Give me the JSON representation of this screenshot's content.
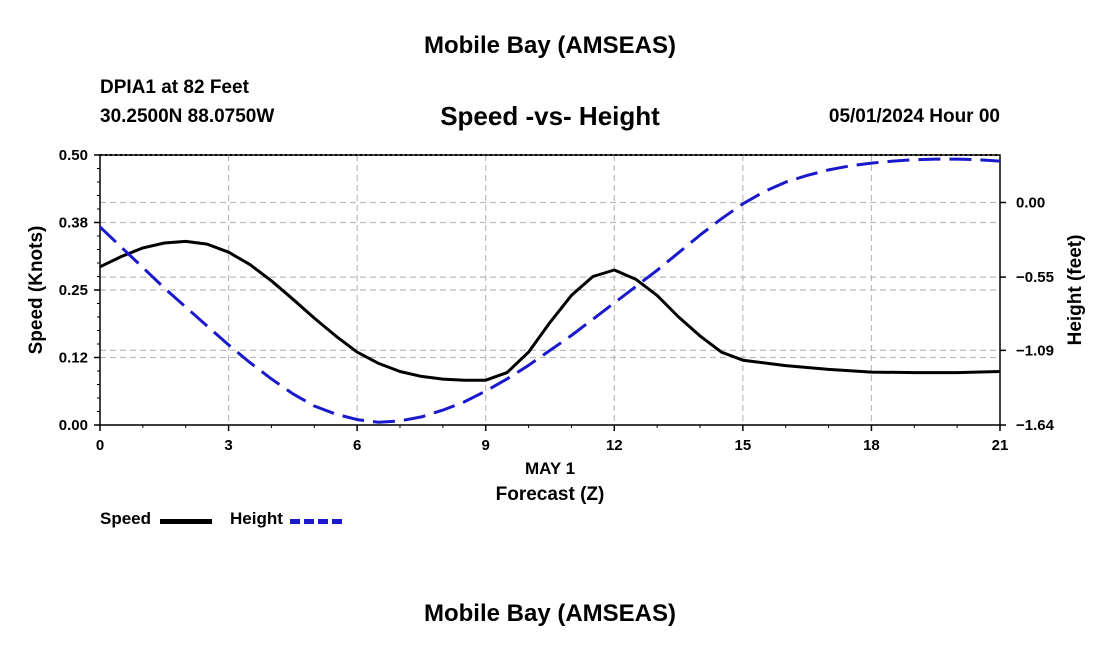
{
  "header": {
    "title": "Mobile Bay (AMSEAS)",
    "station": "DPIA1 at 82 Feet",
    "coords": "30.2500N  88.0750W",
    "subtitle": "Speed -vs- Height",
    "datetime": "05/01/2024 Hour 00"
  },
  "footer": {
    "title": "Mobile Bay (AMSEAS)"
  },
  "legend": {
    "speed_label": "Speed",
    "height_label": "Height"
  },
  "colors": {
    "speed": "#000000",
    "height": "#1a1acc",
    "grid": "#bbbbbb"
  },
  "chart_data": {
    "type": "line",
    "title": "Speed -vs- Height",
    "xlabel": "Forecast (Z)",
    "xlabel_date": "MAY 1",
    "xlim": [
      0,
      21
    ],
    "xticks": [
      0,
      3,
      6,
      9,
      12,
      15,
      18,
      21
    ],
    "xtick_labels": [
      "0",
      "3",
      "6",
      "9",
      "12",
      "15",
      "18",
      "21"
    ],
    "y_left": {
      "label": "Speed (Knots)",
      "lim": [
        0,
        0.5
      ],
      "ticks": [
        0,
        0.125,
        0.25,
        0.375,
        0.5
      ],
      "tick_labels": [
        "0.00",
        "0.12",
        "0.25",
        "0.38",
        "0.50"
      ]
    },
    "y_right": {
      "label": "Height (feet)",
      "lim": [
        -1.64,
        0.35
      ],
      "ticks": [
        -1.64,
        -1.09,
        -0.55,
        0.0
      ],
      "tick_labels": [
        "−1.64",
        "−1.09",
        "−0.55",
        "0.00"
      ]
    },
    "series": [
      {
        "name": "Speed",
        "axis": "left",
        "x": [
          0,
          0.5,
          1,
          1.5,
          2,
          2.5,
          3,
          3.5,
          4,
          4.5,
          5,
          5.5,
          6,
          6.5,
          7,
          7.5,
          8,
          8.5,
          9,
          9.5,
          10,
          10.5,
          11,
          11.5,
          12,
          12.5,
          13,
          13.5,
          14,
          14.5,
          15,
          16,
          17,
          18,
          19,
          20,
          21
        ],
        "values": [
          0.293,
          0.312,
          0.328,
          0.337,
          0.34,
          0.335,
          0.32,
          0.297,
          0.267,
          0.233,
          0.198,
          0.165,
          0.135,
          0.114,
          0.099,
          0.09,
          0.085,
          0.083,
          0.083,
          0.097,
          0.135,
          0.19,
          0.24,
          0.275,
          0.287,
          0.27,
          0.24,
          0.2,
          0.165,
          0.135,
          0.12,
          0.11,
          0.103,
          0.098,
          0.097,
          0.097,
          0.099
        ]
      },
      {
        "name": "Height",
        "axis": "right",
        "x": [
          0,
          0.5,
          1,
          1.5,
          2,
          2.5,
          3,
          3.5,
          4,
          4.5,
          5,
          5.5,
          6,
          6.5,
          7,
          7.5,
          8,
          8.5,
          9,
          9.5,
          10,
          10.5,
          11,
          11.5,
          12,
          12.5,
          13,
          13.5,
          14,
          14.5,
          15,
          15.5,
          16,
          16.5,
          17,
          17.5,
          18,
          18.5,
          19,
          19.5,
          20,
          20.5,
          21
        ],
        "values": [
          -0.18,
          -0.33,
          -0.48,
          -0.63,
          -0.77,
          -0.91,
          -1.05,
          -1.18,
          -1.3,
          -1.41,
          -1.5,
          -1.56,
          -1.6,
          -1.62,
          -1.61,
          -1.58,
          -1.53,
          -1.47,
          -1.39,
          -1.3,
          -1.2,
          -1.09,
          -0.98,
          -0.86,
          -0.74,
          -0.62,
          -0.5,
          -0.37,
          -0.24,
          -0.12,
          -0.01,
          0.08,
          0.15,
          0.2,
          0.24,
          0.27,
          0.29,
          0.305,
          0.315,
          0.32,
          0.32,
          0.315,
          0.305
        ]
      }
    ]
  }
}
